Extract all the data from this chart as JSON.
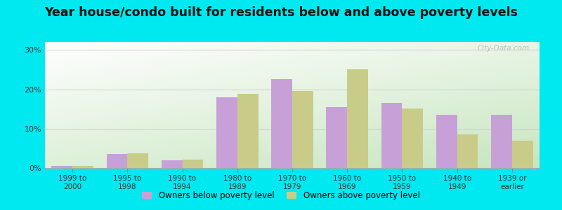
{
  "title": "Year house/condo built for residents below and above poverty levels",
  "categories": [
    "1999 to\n2000",
    "1995 to\n1998",
    "1990 to\n1994",
    "1980 to\n1989",
    "1970 to\n1979",
    "1960 to\n1969",
    "1950 to\n1959",
    "1940 to\n1949",
    "1939 or\nearlier"
  ],
  "below_poverty": [
    0.5,
    3.5,
    2.0,
    18.0,
    22.5,
    15.5,
    16.5,
    13.5,
    13.5
  ],
  "above_poverty": [
    0.5,
    3.8,
    2.2,
    18.8,
    19.5,
    25.0,
    15.2,
    8.5,
    7.0
  ],
  "below_color": "#c8a0d8",
  "above_color": "#c8cc88",
  "ylim": [
    0,
    32
  ],
  "yticks": [
    0,
    10,
    20,
    30
  ],
  "ytick_labels": [
    "0%",
    "10%",
    "20%",
    "30%"
  ],
  "outer_background": "#00e8f0",
  "bar_width": 0.38,
  "title_fontsize": 12.5,
  "legend_label_below": "Owners below poverty level",
  "legend_label_above": "Owners above poverty level",
  "grid_color": "#cccccc",
  "watermark": "City-Data.com"
}
